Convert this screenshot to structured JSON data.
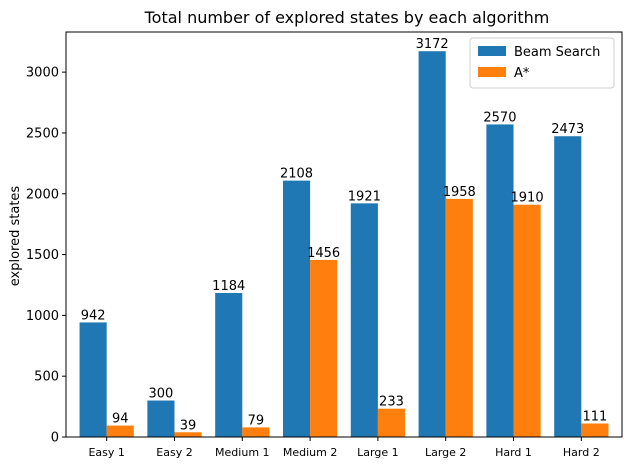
{
  "chart_data": {
    "type": "bar",
    "title": "Total number of explored states by each algorithm",
    "xlabel": "",
    "ylabel": "explored states",
    "ylim": [
      0,
      3330
    ],
    "yticks": [
      0,
      500,
      1000,
      1500,
      2000,
      2500,
      3000
    ],
    "categories": [
      "Easy 1",
      "Easy 2",
      "Medium 1",
      "Medium 2",
      "Large 1",
      "Large 2",
      "Hard 1",
      "Hard 2"
    ],
    "series": [
      {
        "name": "Beam Search",
        "color": "#1f77b4",
        "values": [
          942,
          300,
          1184,
          2108,
          1921,
          3172,
          2570,
          2473
        ]
      },
      {
        "name": "A*",
        "color": "#ff7f0e",
        "values": [
          94,
          39,
          79,
          1456,
          233,
          1958,
          1910,
          111
        ]
      }
    ],
    "legend_position": "top-right",
    "grid": false
  }
}
